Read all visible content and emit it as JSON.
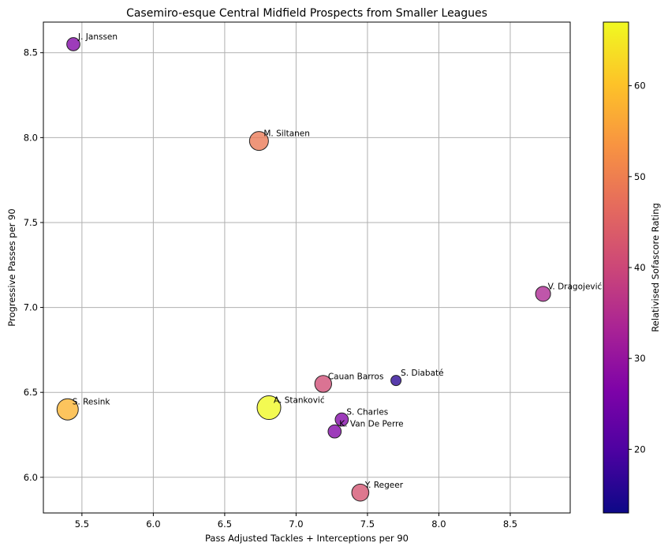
{
  "chart_data": {
    "type": "scatter",
    "title": "Casemiro-esque Central Midfield Prospects from Smaller Leagues",
    "xlabel": "Pass Adjusted Tackles + Interceptions per 90",
    "ylabel": "Progressive Passes per 90",
    "xlim": [
      5.23,
      8.92
    ],
    "ylim": [
      5.79,
      8.68
    ],
    "xticks": [
      5.5,
      6.0,
      6.5,
      7.0,
      7.5,
      8.0,
      8.5
    ],
    "xtick_labels": [
      "5.5",
      "6.0",
      "6.5",
      "7.0",
      "7.5",
      "8.0",
      "8.5"
    ],
    "yticks": [
      6.0,
      6.5,
      7.0,
      7.5,
      8.0,
      8.5
    ],
    "ytick_labels": [
      "6.0",
      "6.5",
      "7.0",
      "7.5",
      "8.0",
      "8.5"
    ],
    "grid": true,
    "colormap": "plasma",
    "colorbar": {
      "label": "Relativised Sofascore Rating",
      "range": [
        13,
        67
      ],
      "ticks": [
        20,
        30,
        40,
        50,
        60
      ],
      "tick_labels": [
        "20",
        "30",
        "40",
        "50",
        "60"
      ]
    },
    "points": [
      {
        "name": "J. Janssen",
        "x": 5.44,
        "y": 8.55,
        "rating": 27
      },
      {
        "name": "M. Siltanen",
        "x": 6.74,
        "y": 7.98,
        "rating": 49
      },
      {
        "name": "V. Dragojević",
        "x": 8.73,
        "y": 7.08,
        "rating": 34
      },
      {
        "name": "S. Diabaté",
        "x": 7.7,
        "y": 6.57,
        "rating": 16
      },
      {
        "name": "Cauan Barros",
        "x": 7.19,
        "y": 6.55,
        "rating": 41
      },
      {
        "name": "S. Resink",
        "x": 5.4,
        "y": 6.4,
        "rating": 58
      },
      {
        "name": "A. Stanković",
        "x": 6.81,
        "y": 6.41,
        "rating": 67
      },
      {
        "name": "S. Charles",
        "x": 7.32,
        "y": 6.34,
        "rating": 27
      },
      {
        "name": "K. Van De Perre",
        "x": 7.27,
        "y": 6.27,
        "rating": 27
      },
      {
        "name": "Y. Regeer",
        "x": 7.45,
        "y": 5.91,
        "rating": 42
      }
    ]
  }
}
